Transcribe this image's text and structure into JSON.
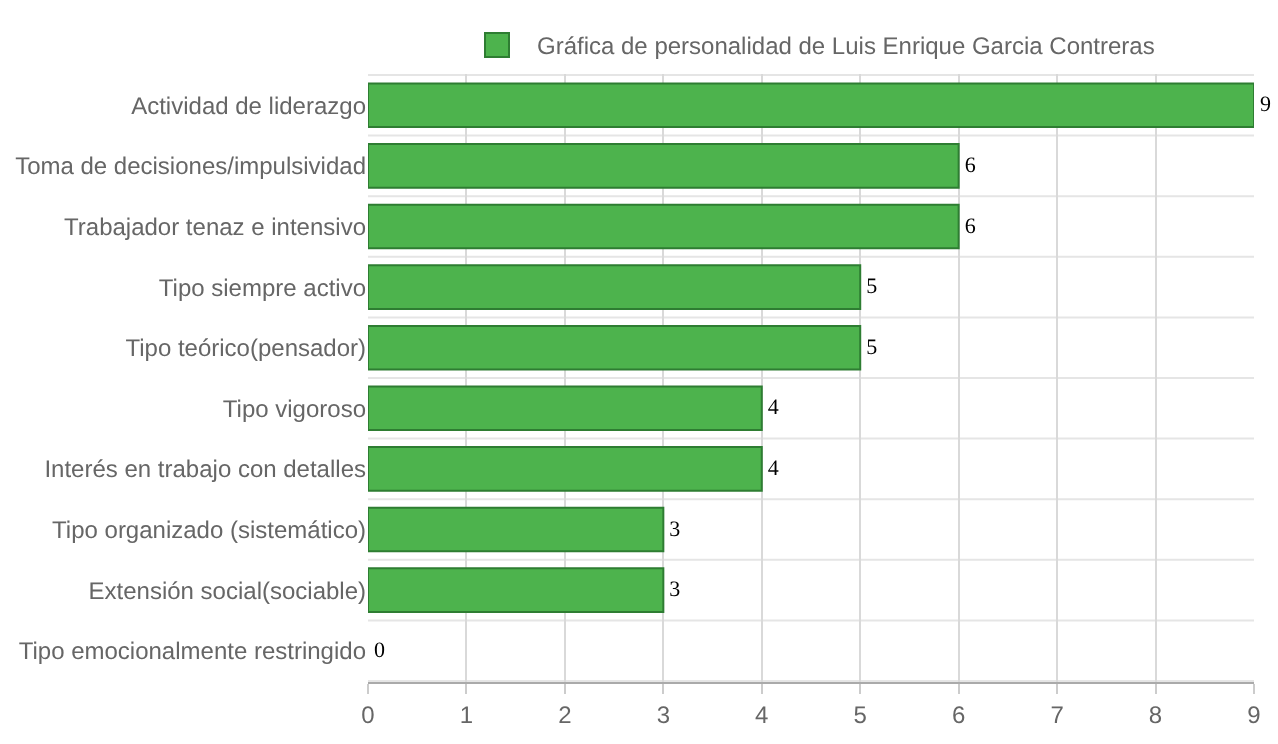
{
  "chart_data": {
    "type": "bar",
    "orientation": "horizontal",
    "categories": [
      "Actividad de liderazgo",
      "Toma de decisiones/impulsividad",
      "Trabajador tenaz e intensivo",
      "Tipo siempre activo",
      "Tipo teórico(pensador)",
      "Tipo vigoroso",
      "Interés en trabajo con detalles",
      "Tipo organizado (sistemático)",
      "Extensión social(sociable)",
      "Tipo emocionalmente restringido"
    ],
    "series": [
      {
        "name": "Gráfica de personalidad de Luis Enrique Garcia Contreras",
        "color": "#4db34d",
        "values": [
          9,
          6,
          6,
          5,
          5,
          4,
          4,
          3,
          3,
          0
        ]
      }
    ],
    "xlim": [
      0,
      9
    ],
    "xticks": [
      0,
      1,
      2,
      3,
      4,
      5,
      6,
      7,
      8,
      9
    ],
    "grid": true,
    "legend": "top",
    "data_labels": true
  }
}
